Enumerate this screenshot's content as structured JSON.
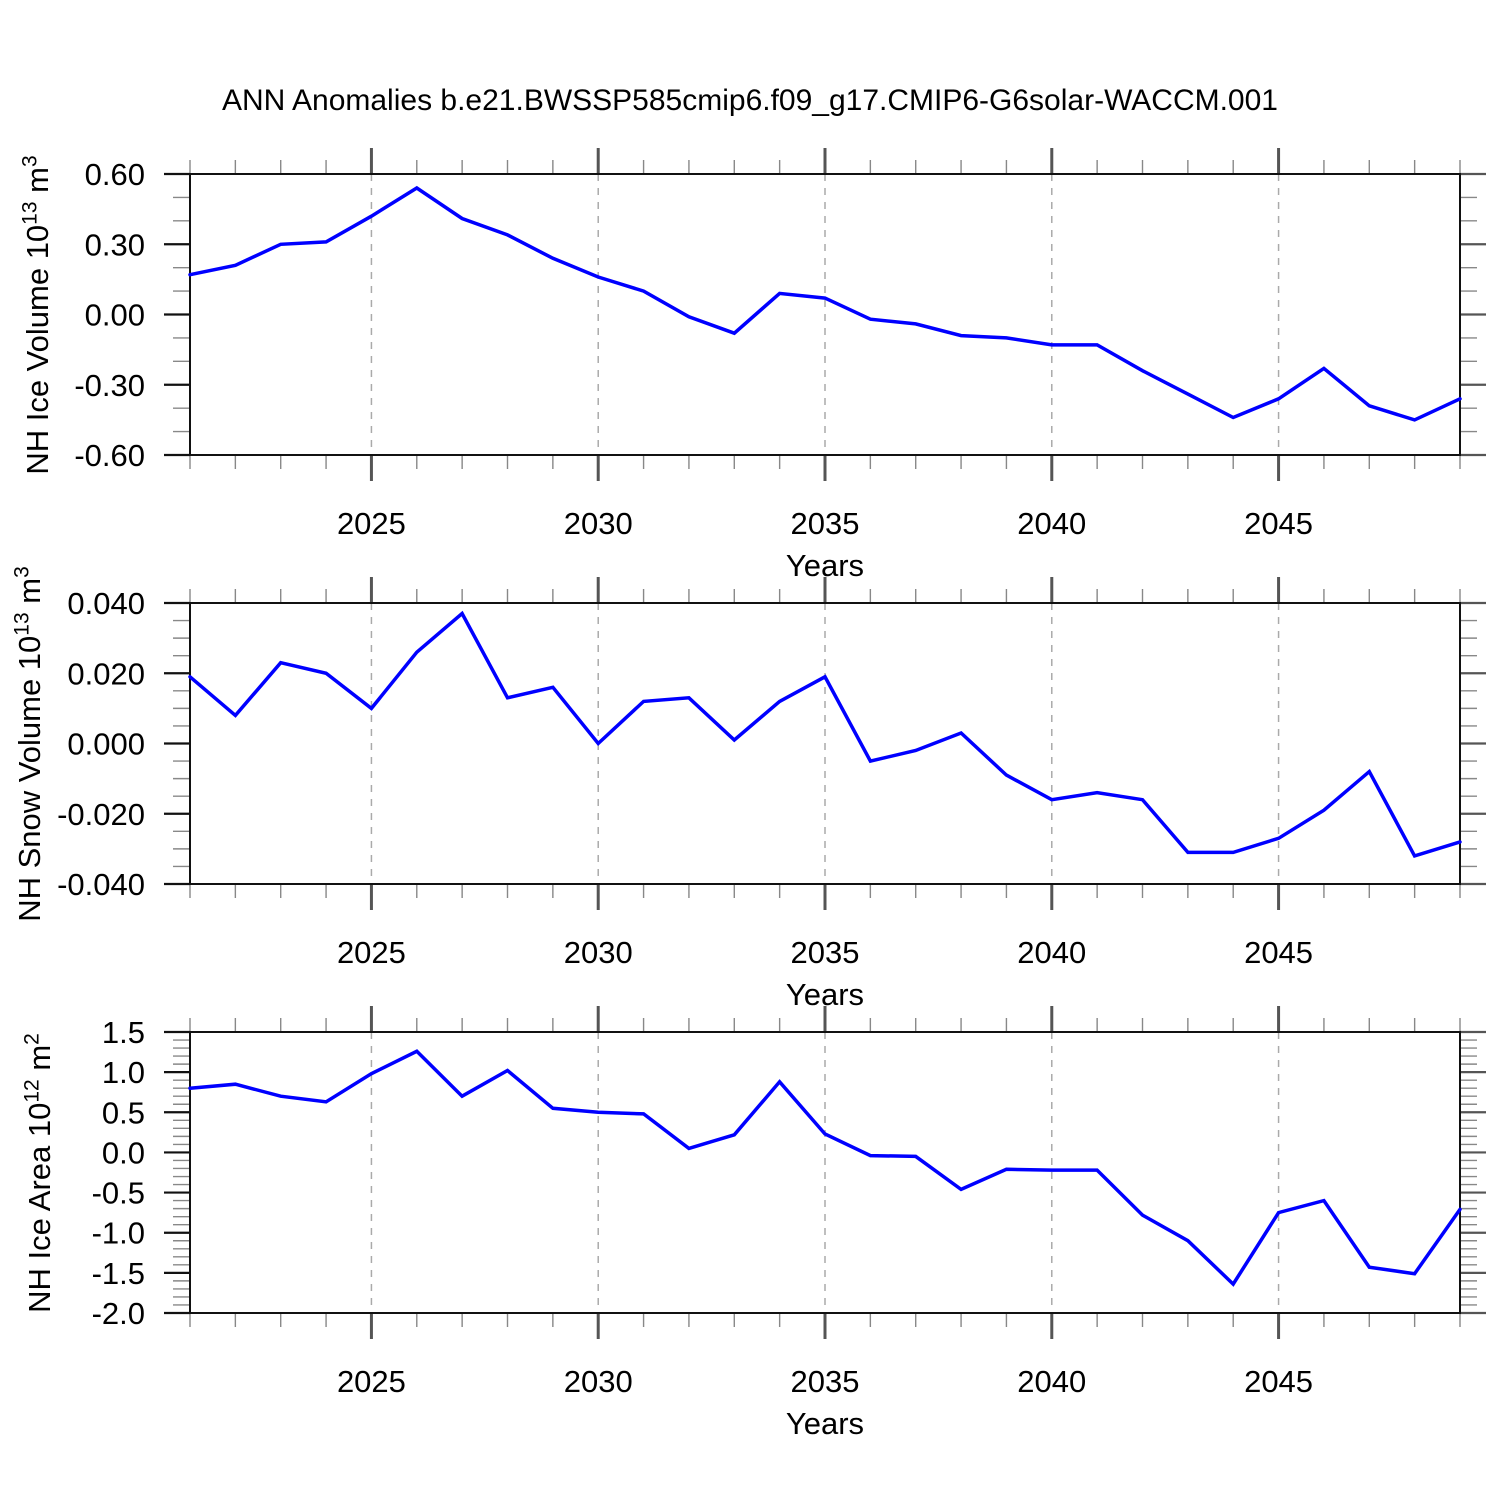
{
  "title": "ANN Anomalies b.e21.BWSSP585cmip6.f09_g17.CMIP6-G6solar-WACCM.001",
  "colors": {
    "line": "#0000ff",
    "frame": "#111111",
    "grid": "#aaaaaa",
    "tick_major": "#555555",
    "tick_minor": "#888888",
    "background": "#ffffff",
    "text": "#000000"
  },
  "x_axis": {
    "label": "Years",
    "min": 2021,
    "max": 2049,
    "major_ticks": [
      2025,
      2030,
      2035,
      2040,
      2045
    ],
    "major_tick_labels": [
      "2025",
      "2030",
      "2035",
      "2040",
      "2045"
    ],
    "minor_step": 1
  },
  "chart_data": [
    {
      "type": "line",
      "name": "nh-ice-volume",
      "ylabel": {
        "base": "NH Ice Volume 10",
        "sup": "13",
        "base2": " m",
        "sup2": "3"
      },
      "ylim": [
        -0.6,
        0.6
      ],
      "yticks": [
        0.6,
        0.3,
        0.0,
        -0.3,
        -0.6
      ],
      "ytick_labels": [
        "0.60",
        "0.30",
        "0.00",
        "-0.30",
        "-0.60"
      ],
      "ytick_minor": 0.1,
      "grid": "dashed-vertical",
      "x": [
        2021,
        2022,
        2023,
        2024,
        2025,
        2026,
        2027,
        2028,
        2029,
        2030,
        2031,
        2032,
        2033,
        2034,
        2035,
        2036,
        2037,
        2038,
        2039,
        2040,
        2041,
        2042,
        2043,
        2044,
        2045,
        2046,
        2047,
        2048,
        2049
      ],
      "values": [
        0.17,
        0.21,
        0.3,
        0.31,
        0.42,
        0.54,
        0.41,
        0.34,
        0.24,
        0.16,
        0.1,
        -0.01,
        -0.08,
        0.09,
        0.07,
        -0.02,
        -0.04,
        -0.09,
        -0.1,
        -0.13,
        -0.13,
        -0.24,
        -0.34,
        -0.44,
        -0.36,
        -0.23,
        -0.39,
        -0.45,
        -0.36
      ]
    },
    {
      "type": "line",
      "name": "nh-snow-volume",
      "ylabel": {
        "base": "NH Snow Volume 10",
        "sup": "13",
        "base2": " m",
        "sup2": "3"
      },
      "ylim": [
        -0.04,
        0.04
      ],
      "yticks": [
        0.04,
        0.02,
        0.0,
        -0.02,
        -0.04
      ],
      "ytick_labels": [
        "0.040",
        "0.020",
        "0.000",
        "-0.020",
        "-0.040"
      ],
      "ytick_minor": 0.005,
      "grid": "dashed-vertical",
      "x": [
        2021,
        2022,
        2023,
        2024,
        2025,
        2026,
        2027,
        2028,
        2029,
        2030,
        2031,
        2032,
        2033,
        2034,
        2035,
        2036,
        2037,
        2038,
        2039,
        2040,
        2041,
        2042,
        2043,
        2044,
        2045,
        2046,
        2047,
        2048,
        2049
      ],
      "values": [
        0.019,
        0.008,
        0.023,
        0.02,
        0.01,
        0.026,
        0.037,
        0.013,
        0.016,
        0.0,
        0.012,
        0.013,
        0.001,
        0.012,
        0.019,
        -0.005,
        -0.002,
        0.003,
        -0.009,
        -0.016,
        -0.014,
        -0.016,
        -0.031,
        -0.031,
        -0.027,
        -0.019,
        -0.008,
        -0.032,
        -0.028
      ]
    },
    {
      "type": "line",
      "name": "nh-ice-area",
      "ylabel": {
        "base": "NH Ice Area 10",
        "sup": "12",
        "base2": " m",
        "sup2": "2"
      },
      "ylim": [
        -2.0,
        1.5
      ],
      "yticks": [
        1.5,
        1.0,
        0.5,
        0.0,
        -0.5,
        -1.0,
        -1.5,
        -2.0
      ],
      "ytick_labels": [
        "1.5",
        "1.0",
        "0.5",
        "0.0",
        "-0.5",
        "-1.0",
        "-1.5",
        "-2.0"
      ],
      "ytick_minor": 0.1,
      "grid": "dashed-vertical",
      "x": [
        2021,
        2022,
        2023,
        2024,
        2025,
        2026,
        2027,
        2028,
        2029,
        2030,
        2031,
        2032,
        2033,
        2034,
        2035,
        2036,
        2037,
        2038,
        2039,
        2040,
        2041,
        2042,
        2043,
        2044,
        2045,
        2046,
        2047,
        2048,
        2049
      ],
      "values": [
        0.8,
        0.85,
        0.7,
        0.63,
        0.98,
        1.26,
        0.7,
        1.02,
        0.55,
        0.5,
        0.48,
        0.05,
        0.22,
        0.88,
        0.23,
        -0.04,
        -0.05,
        -0.46,
        -0.21,
        -0.22,
        -0.22,
        -0.78,
        -1.1,
        -1.64,
        -0.75,
        -0.6,
        -1.43,
        -1.51,
        -0.71
      ]
    }
  ]
}
